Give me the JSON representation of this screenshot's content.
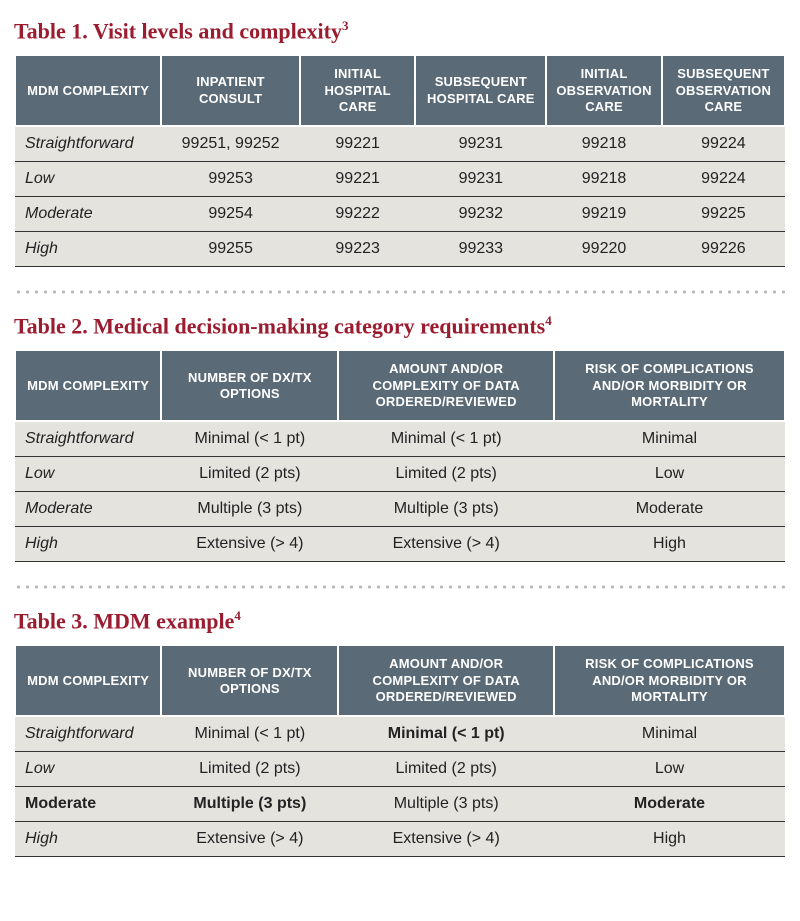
{
  "colors": {
    "title_color": "#9b1c2f",
    "header_bg": "#5a6b77",
    "body_bg": "#e4e3de",
    "row_border": "#333333",
    "dot_color": "#b8b8b8",
    "text_color": "#222222",
    "header_text": "#ffffff"
  },
  "typography": {
    "title_fontsize_pt": 17,
    "header_fontsize_pt": 10,
    "cell_fontsize_pt": 12,
    "title_font": "Georgia serif",
    "body_font": "Helvetica sans-serif"
  },
  "table1": {
    "title_prefix": "Table 1. Visit levels and complexity",
    "title_sup": "3",
    "col_widths_pct": [
      19,
      18,
      15,
      17,
      15,
      16
    ],
    "columns": [
      "MDM COMPLEXITY",
      "INPATIENT CONSULT",
      "INITIAL HOSPITAL CARE",
      "SUBSEQUENT HOSPITAL CARE",
      "INITIAL OBSERVATION CARE",
      "SUBSEQUENT OBSERVATION CARE"
    ],
    "rows": [
      [
        "Straightforward",
        "99251, 99252",
        "99221",
        "99231",
        "99218",
        "99224"
      ],
      [
        "Low",
        "99253",
        "99221",
        "99231",
        "99218",
        "99224"
      ],
      [
        "Moderate",
        "99254",
        "99222",
        "99232",
        "99219",
        "99225"
      ],
      [
        "High",
        "99255",
        "99223",
        "99233",
        "99220",
        "99226"
      ]
    ]
  },
  "table2": {
    "title_prefix": "Table 2. Medical decision-making category requirements",
    "title_sup": "4",
    "col_widths_pct": [
      19,
      23,
      28,
      30
    ],
    "columns": [
      "MDM COMPLEXITY",
      "NUMBER OF DX/TX OPTIONS",
      "AMOUNT AND/OR COMPLEXITY OF DATA ORDERED/REVIEWED",
      "RISK OF COMPLICATIONS AND/OR MORBIDITY OR MORTALITY"
    ],
    "rows": [
      [
        "Straightforward",
        "Minimal (< 1 pt)",
        "Minimal (< 1 pt)",
        "Minimal"
      ],
      [
        "Low",
        "Limited (2 pts)",
        "Limited (2 pts)",
        "Low"
      ],
      [
        "Moderate",
        "Multiple (3 pts)",
        "Multiple (3 pts)",
        "Moderate"
      ],
      [
        "High",
        "Extensive (> 4)",
        "Extensive (> 4)",
        "High"
      ]
    ]
  },
  "table3": {
    "title_prefix": "Table 3. MDM example",
    "title_sup": "4",
    "col_widths_pct": [
      19,
      23,
      28,
      30
    ],
    "columns": [
      "MDM COMPLEXITY",
      "NUMBER OF DX/TX OPTIONS",
      "AMOUNT AND/OR COMPLEXITY OF DATA ORDERED/REVIEWED",
      "RISK OF COMPLICATIONS AND/OR MORBIDITY OR MORTALITY"
    ],
    "rows": [
      [
        "Straightforward",
        "Minimal (< 1 pt)",
        "Minimal (< 1 pt)",
        "Minimal"
      ],
      [
        "Low",
        "Limited (2 pts)",
        "Limited (2 pts)",
        "Low"
      ],
      [
        "Moderate",
        "Multiple (3 pts)",
        "Multiple (3 pts)",
        "Moderate"
      ],
      [
        "High",
        "Extensive (> 4)",
        "Extensive (> 4)",
        "High"
      ]
    ],
    "bold_cells": [
      [
        0,
        2
      ],
      [
        2,
        0
      ],
      [
        2,
        1
      ],
      [
        2,
        3
      ]
    ]
  }
}
